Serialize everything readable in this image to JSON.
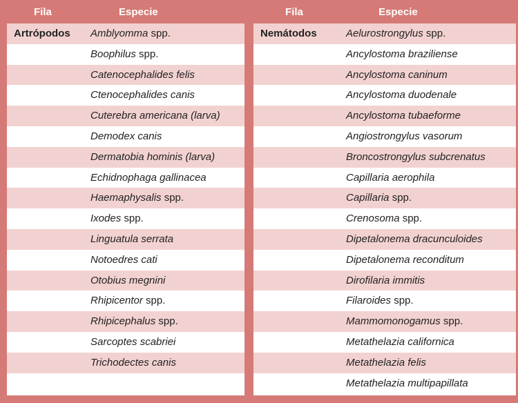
{
  "headers": {
    "fila": "Fila",
    "especie": "Especie"
  },
  "left": {
    "phylum": "Artrópodos",
    "species": [
      {
        "name": "Amblyomma",
        "suffix": " spp."
      },
      {
        "name": "Boophilus",
        "suffix": " spp."
      },
      {
        "name": "Catenocephalides felis",
        "suffix": ""
      },
      {
        "name": "Ctenocephalides canis",
        "suffix": ""
      },
      {
        "name": "Cuterebra americana (larva)",
        "suffix": ""
      },
      {
        "name": "Demodex canis",
        "suffix": ""
      },
      {
        "name": "Dermatobia hominis (larva)",
        "suffix": ""
      },
      {
        "name": "Echidnophaga gallinacea",
        "suffix": ""
      },
      {
        "name": "Haemaphysalis",
        "suffix": " spp."
      },
      {
        "name": "Ixodes",
        "suffix": " spp."
      },
      {
        "name": "Linguatula serrata",
        "suffix": ""
      },
      {
        "name": "Notoedres cati",
        "suffix": ""
      },
      {
        "name": "Otobius megnini",
        "suffix": ""
      },
      {
        "name": "Rhipicentor",
        "suffix": " spp."
      },
      {
        "name": "Rhipicephalus",
        "suffix": " spp."
      },
      {
        "name": "Sarcoptes scabriei",
        "suffix": ""
      },
      {
        "name": "Trichodectes canis",
        "suffix": ""
      },
      {
        "name": "",
        "suffix": ""
      }
    ]
  },
  "right": {
    "phylum": "Nemátodos",
    "species": [
      {
        "name": "Aelurostrongylus",
        "suffix": " spp."
      },
      {
        "name": "Ancylostoma braziliense",
        "suffix": ""
      },
      {
        "name": "Ancylostoma caninum",
        "suffix": ""
      },
      {
        "name": "Ancylostoma duodenale",
        "suffix": ""
      },
      {
        "name": "Ancylostoma tubaeforme",
        "suffix": ""
      },
      {
        "name": "Angiostrongylus vasorum",
        "suffix": ""
      },
      {
        "name": "Broncostrongylus subcrenatus",
        "suffix": ""
      },
      {
        "name": "Capillaria aerophila",
        "suffix": ""
      },
      {
        "name": "Capillaria",
        "suffix": " spp."
      },
      {
        "name": "Crenosoma",
        "suffix": " spp."
      },
      {
        "name": "Dipetalonema dracunculoides",
        "suffix": ""
      },
      {
        "name": "Dipetalonema reconditum",
        "suffix": ""
      },
      {
        "name": "Dirofilaria immitis",
        "suffix": ""
      },
      {
        "name": "Filaroides",
        "suffix": " spp."
      },
      {
        "name": "Mammomonogamus",
        "suffix": " spp."
      },
      {
        "name": "Metathelazia californica",
        "suffix": ""
      },
      {
        "name": "Metathelazia felis",
        "suffix": ""
      },
      {
        "name": "Metathelazia multipapillata",
        "suffix": ""
      }
    ]
  },
  "colors": {
    "frame": "#d57a76",
    "stripe": "#f2d2d0",
    "text": "#222222"
  }
}
